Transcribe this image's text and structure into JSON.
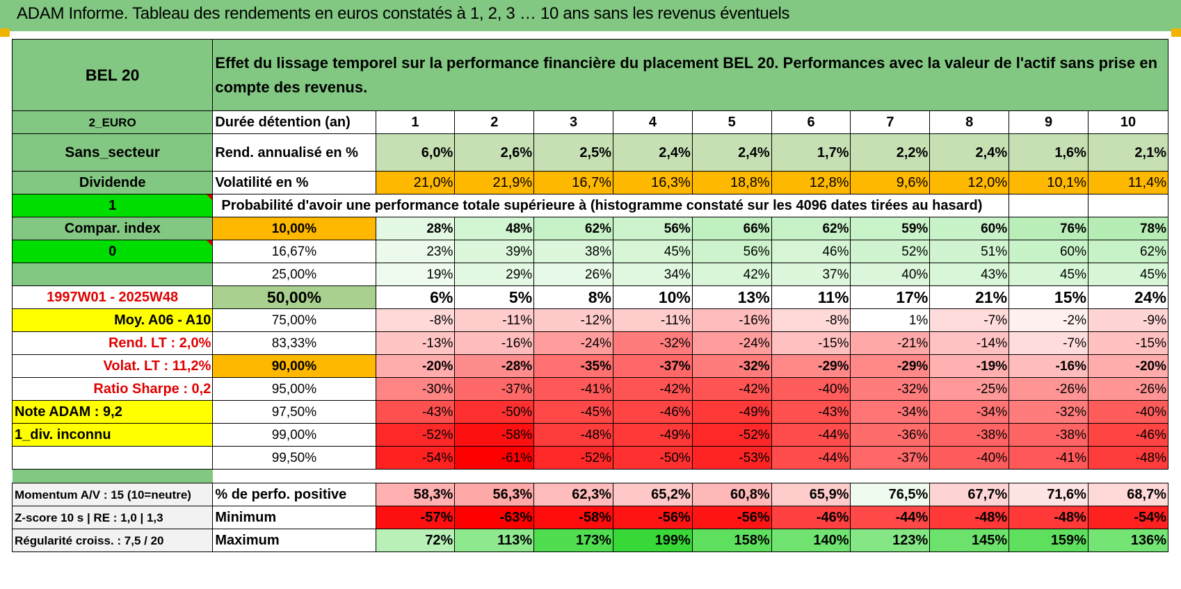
{
  "title": "ADAM Informe. Tableau des rendements en euros constatés à 1, 2, 3 … 10 ans sans les revenus éventuels",
  "header": {
    "asset": "BEL 20",
    "description": "Effet du lissage temporel sur la performance financière du placement BEL 20. Performances avec la valeur de l'actif sans prise en compte des revenus."
  },
  "side": {
    "currency": "2_EURO",
    "sector": "Sans_secteur",
    "dividend": "Dividende",
    "flag1": "1",
    "compar": "Compar. index",
    "flag0": "0",
    "empty": "",
    "period": "1997W01 - 2025W48",
    "moy": "Moy. A06 - A10",
    "rend_lt": "Rend. LT :    2,0%",
    "volat_lt": "Volat. LT :    11,2%",
    "sharpe": "Ratio Sharpe :     0,2",
    "note": "Note ADAM : 9,2",
    "div": "1_div. inconnu",
    "momentum": "Momentum A/V : 15 (10=neutre)",
    "zscore": "Z-score 10 s | RE : 1,0 | 1,3",
    "regularite": "Régularité croiss. : 7,5 / 20"
  },
  "labels": {
    "duration": "Durée détention (an)",
    "rend": "Rend. annualisé en %",
    "volat": "Volatilité en %",
    "proba": "Probabilité d'avoir une performance totale supérieure à (histogramme constaté sur les 4096 dates tirées au hasard)",
    "pct_pos": "% de perfo. positive",
    "minimum": "Minimum",
    "maximum": "Maximum"
  },
  "years": [
    "1",
    "2",
    "3",
    "4",
    "5",
    "6",
    "7",
    "8",
    "9",
    "10"
  ],
  "rend": [
    "6,0%",
    "2,6%",
    "2,5%",
    "2,4%",
    "2,4%",
    "1,7%",
    "2,2%",
    "2,4%",
    "1,6%",
    "2,1%"
  ],
  "volat": [
    "21,0%",
    "21,9%",
    "16,7%",
    "16,3%",
    "18,8%",
    "12,8%",
    "9,6%",
    "12,0%",
    "10,1%",
    "11,4%"
  ],
  "volat_colors": [
    "#ffb800",
    "#ffb800",
    "#ffb800",
    "#ffb800",
    "#ffb800",
    "#ffb800",
    "#ffb800",
    "#ffb800",
    "#ffb800",
    "#ffb800"
  ],
  "rend_colors": [
    "#c6e0b4",
    "#c6e0b4",
    "#c6e0b4",
    "#c6e0b4",
    "#c6e0b4",
    "#c6e0b4",
    "#c6e0b4",
    "#c6e0b4",
    "#c6e0b4",
    "#c6e0b4"
  ],
  "quantiles": [
    {
      "label": "10,00%",
      "bold": true,
      "big": false,
      "labelbg": "#ffb800",
      "values": [
        "28%",
        "48%",
        "62%",
        "56%",
        "66%",
        "62%",
        "59%",
        "60%",
        "76%",
        "78%"
      ],
      "colors": [
        "#e3f9e3",
        "#d2f5d2",
        "#c7f2c7",
        "#ccf3cc",
        "#c0f0c0",
        "#c7f2c7",
        "#c9f3c9",
        "#c8f2c8",
        "#b9eeb9",
        "#b5edb5"
      ]
    },
    {
      "label": "16,67%",
      "bold": false,
      "big": false,
      "labelbg": "#ffffff",
      "values": [
        "23%",
        "39%",
        "38%",
        "45%",
        "56%",
        "46%",
        "52%",
        "51%",
        "60%",
        "62%"
      ],
      "colors": [
        "#ebfaeb",
        "#dcf7dc",
        "#ddf7dd",
        "#d6f6d6",
        "#ccf3cc",
        "#d5f5d5",
        "#cff4cf",
        "#d0f4d0",
        "#c8f2c8",
        "#c7f2c7"
      ]
    },
    {
      "label": "25,00%",
      "bold": false,
      "big": false,
      "labelbg": "#ffffff",
      "values": [
        "19%",
        "29%",
        "26%",
        "34%",
        "42%",
        "37%",
        "40%",
        "43%",
        "45%",
        "45%"
      ],
      "colors": [
        "#eefbee",
        "#e4f9e4",
        "#e7f9e7",
        "#e0f8e0",
        "#d9f6d9",
        "#ddf7dd",
        "#dbf6db",
        "#d8f6d8",
        "#d6f6d6",
        "#d6f6d6"
      ]
    },
    {
      "label": "50,00%",
      "bold": true,
      "big": true,
      "labelbg": "#a9d08e",
      "values": [
        "6%",
        "5%",
        "8%",
        "10%",
        "13%",
        "11%",
        "17%",
        "21%",
        "15%",
        "24%"
      ],
      "colors": [
        "#ffffff",
        "#ffffff",
        "#ffffff",
        "#ffffff",
        "#ffffff",
        "#ffffff",
        "#ffffff",
        "#ffffff",
        "#ffffff",
        "#ffffff"
      ]
    },
    {
      "label": "75,00%",
      "bold": false,
      "big": false,
      "labelbg": "#ffffff",
      "values": [
        "-8%",
        "-11%",
        "-12%",
        "-11%",
        "-16%",
        "-8%",
        "1%",
        "-7%",
        "-2%",
        "-9%"
      ],
      "colors": [
        "#ffd8d8",
        "#ffcccc",
        "#ffcaca",
        "#ffcccc",
        "#ffbcbc",
        "#ffd8d8",
        "#ffffff",
        "#ffdcdc",
        "#fff0f0",
        "#ffd4d4"
      ]
    },
    {
      "label": "83,33%",
      "bold": false,
      "big": false,
      "labelbg": "#ffffff",
      "values": [
        "-13%",
        "-16%",
        "-24%",
        "-32%",
        "-24%",
        "-15%",
        "-21%",
        "-14%",
        "-7%",
        "-15%"
      ],
      "colors": [
        "#ffc4c4",
        "#ffbcbc",
        "#ff9c9c",
        "#ff7c7c",
        "#ff9c9c",
        "#ffc0c0",
        "#ffa8a8",
        "#ffc2c2",
        "#ffdcdc",
        "#ffc0c0"
      ]
    },
    {
      "label": "90,00%",
      "bold": true,
      "big": false,
      "labelbg": "#ffb800",
      "values": [
        "-20%",
        "-28%",
        "-35%",
        "-37%",
        "-32%",
        "-29%",
        "-29%",
        "-19%",
        "-16%",
        "-20%"
      ],
      "colors": [
        "#ffacac",
        "#ff8c8c",
        "#ff7070",
        "#ff6868",
        "#ff7c7c",
        "#ff8888",
        "#ff8888",
        "#ffb0b0",
        "#ffbcbc",
        "#ffacac"
      ]
    },
    {
      "label": "95,00%",
      "bold": false,
      "big": false,
      "labelbg": "#ffffff",
      "values": [
        "-30%",
        "-37%",
        "-41%",
        "-42%",
        "-42%",
        "-40%",
        "-32%",
        "-25%",
        "-26%",
        "-26%"
      ],
      "colors": [
        "#ff8484",
        "#ff6868",
        "#ff5858",
        "#ff5454",
        "#ff5454",
        "#ff5c5c",
        "#ff7c7c",
        "#ff9898",
        "#ff9494",
        "#ff9494"
      ]
    },
    {
      "label": "97,50%",
      "bold": false,
      "big": false,
      "labelbg": "#ffffff",
      "values": [
        "-43%",
        "-50%",
        "-45%",
        "-46%",
        "-49%",
        "-43%",
        "-34%",
        "-34%",
        "-32%",
        "-40%"
      ],
      "colors": [
        "#ff5050",
        "#ff3030",
        "#ff4848",
        "#ff4444",
        "#ff3838",
        "#ff5050",
        "#ff7474",
        "#ff7474",
        "#ff7c7c",
        "#ff5c5c"
      ]
    },
    {
      "label": "99,00%",
      "bold": false,
      "big": false,
      "labelbg": "#ffffff",
      "values": [
        "-52%",
        "-58%",
        "-48%",
        "-49%",
        "-52%",
        "-44%",
        "-36%",
        "-38%",
        "-38%",
        "-46%"
      ],
      "colors": [
        "#ff2828",
        "#ff1010",
        "#ff3c3c",
        "#ff3838",
        "#ff2828",
        "#ff4c4c",
        "#ff6c6c",
        "#ff6464",
        "#ff6464",
        "#ff4444"
      ]
    },
    {
      "label": "99,50%",
      "bold": false,
      "big": false,
      "labelbg": "#ffffff",
      "values": [
        "-54%",
        "-61%",
        "-52%",
        "-50%",
        "-53%",
        "-44%",
        "-37%",
        "-40%",
        "-41%",
        "-48%"
      ],
      "colors": [
        "#ff2020",
        "#ff0000",
        "#ff2828",
        "#ff3030",
        "#ff2424",
        "#ff4c4c",
        "#ff6868",
        "#ff5c5c",
        "#ff5858",
        "#ff3c3c"
      ]
    }
  ],
  "pct_pos": [
    "58,3%",
    "56,3%",
    "62,3%",
    "65,2%",
    "60,8%",
    "65,9%",
    "76,5%",
    "67,7%",
    "71,6%",
    "68,7%"
  ],
  "pct_pos_colors": [
    "#ffb0b0",
    "#ffa8a8",
    "#ffbcbc",
    "#ffc8c8",
    "#ffb8b8",
    "#ffcccc",
    "#eefbee",
    "#ffd4d4",
    "#ffe4e4",
    "#ffd8d8"
  ],
  "minimum": [
    "-57%",
    "-63%",
    "-58%",
    "-56%",
    "-56%",
    "-46%",
    "-44%",
    "-48%",
    "-48%",
    "-54%"
  ],
  "minimum_colors": [
    "#ff1010",
    "#ff0000",
    "#ff0c0c",
    "#ff1414",
    "#ff1414",
    "#ff4040",
    "#ff4848",
    "#ff3838",
    "#ff3838",
    "#ff2020"
  ],
  "maximum": [
    "72%",
    "113%",
    "173%",
    "199%",
    "158%",
    "140%",
    "123%",
    "145%",
    "159%",
    "136%"
  ],
  "maximum_colors": [
    "#b8f0b8",
    "#8ee88e",
    "#50dd50",
    "#38d838",
    "#5ee05e",
    "#70e370",
    "#84e684",
    "#6ce26c",
    "#5ee05e",
    "#74e474"
  ]
}
